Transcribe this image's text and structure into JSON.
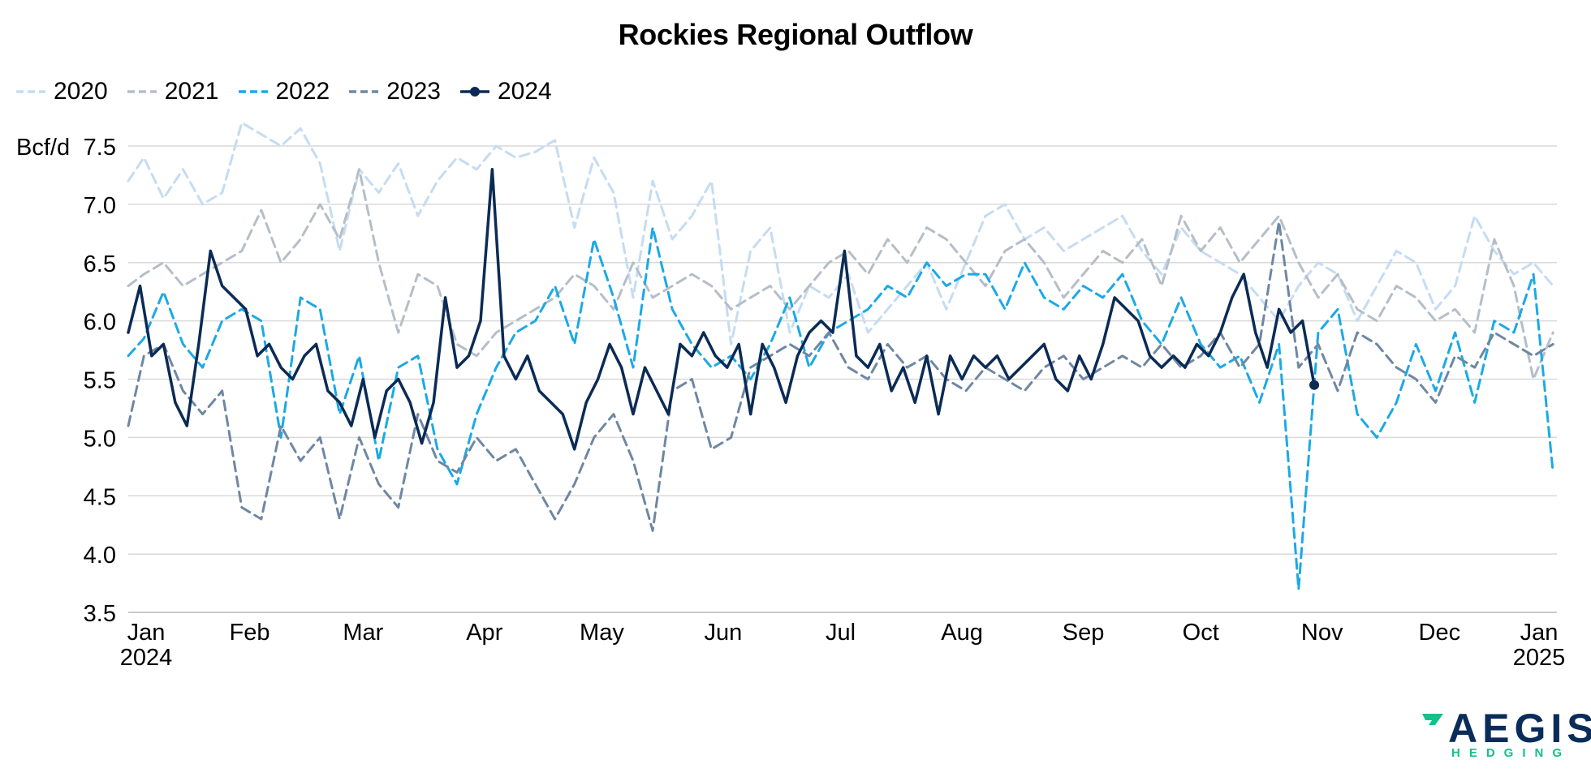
{
  "chart_data": {
    "type": "line",
    "title": "Rockies Regional Outflow",
    "ylabel": "Bcf/d",
    "ylim": [
      3.5,
      7.5
    ],
    "yticks": [
      "3.5",
      "4.0",
      "4.5",
      "5.0",
      "5.5",
      "6.0",
      "6.5",
      "7.0",
      "7.5"
    ],
    "xticks": [
      "Jan",
      "Feb",
      "Mar",
      "Apr",
      "May",
      "Jun",
      "Jul",
      "Aug",
      "Sep",
      "Oct",
      "Nov",
      "Dec",
      "Jan"
    ],
    "xtick_years": [
      "2024",
      "",
      "",
      "",
      "",
      "",
      "",
      "",
      "",
      "",
      "",
      "",
      "2025"
    ],
    "legend_position": "top-left",
    "grid": "horizontal",
    "series": [
      {
        "name": "2020",
        "color": "#c5dcf2",
        "dash": true,
        "x": [
          1,
          5,
          10,
          15,
          20,
          25,
          30,
          35,
          40,
          45,
          50,
          55,
          60,
          65,
          70,
          75,
          80,
          85,
          90,
          95,
          100,
          105,
          110,
          115,
          120,
          125,
          130,
          135,
          140,
          145,
          150,
          155,
          160,
          165,
          170,
          175,
          180,
          185,
          190,
          195,
          200,
          205,
          210,
          215,
          220,
          225,
          230,
          235,
          240,
          245,
          250,
          255,
          260,
          265,
          270,
          275,
          280,
          285,
          290,
          295,
          300,
          305,
          310,
          315,
          320,
          325,
          330,
          335,
          340,
          345,
          350,
          355,
          360,
          365
        ],
        "y": [
          7.2,
          7.4,
          7.05,
          7.3,
          7.0,
          7.1,
          7.7,
          7.6,
          7.5,
          7.65,
          7.35,
          6.6,
          7.3,
          7.1,
          7.35,
          6.9,
          7.2,
          7.4,
          7.3,
          7.5,
          7.4,
          7.45,
          7.55,
          6.8,
          7.4,
          7.1,
          6.2,
          7.2,
          6.7,
          6.9,
          7.2,
          5.8,
          6.6,
          6.8,
          5.9,
          6.3,
          6.2,
          6.4,
          5.9,
          6.1,
          6.3,
          6.5,
          6.1,
          6.5,
          6.9,
          7.0,
          6.7,
          6.8,
          6.6,
          6.7,
          6.8,
          6.9,
          6.6,
          6.4,
          6.8,
          6.6,
          6.5,
          6.4,
          6.2,
          6.0,
          6.3,
          6.5,
          6.4,
          6.0,
          6.3,
          6.6,
          6.5,
          6.1,
          6.3,
          6.9,
          6.6,
          6.4,
          6.5,
          6.3
        ]
      },
      {
        "name": "2021",
        "color": "#b5bec8",
        "dash": true,
        "x": [
          1,
          5,
          10,
          15,
          20,
          25,
          30,
          35,
          40,
          45,
          50,
          55,
          60,
          65,
          70,
          75,
          80,
          85,
          90,
          95,
          100,
          105,
          110,
          115,
          120,
          125,
          130,
          135,
          140,
          145,
          150,
          155,
          160,
          165,
          170,
          175,
          180,
          185,
          190,
          195,
          200,
          205,
          210,
          215,
          220,
          225,
          230,
          235,
          240,
          245,
          250,
          255,
          260,
          265,
          270,
          275,
          280,
          285,
          290,
          295,
          300,
          305,
          310,
          315,
          320,
          325,
          330,
          335,
          340,
          345,
          350,
          355,
          360,
          365
        ],
        "y": [
          6.3,
          6.4,
          6.5,
          6.3,
          6.4,
          6.5,
          6.6,
          6.95,
          6.5,
          6.7,
          7.0,
          6.7,
          7.3,
          6.5,
          5.9,
          6.4,
          6.3,
          5.8,
          5.7,
          5.9,
          6.0,
          6.1,
          6.2,
          6.4,
          6.3,
          6.1,
          6.5,
          6.2,
          6.3,
          6.4,
          6.3,
          6.1,
          6.2,
          6.3,
          6.1,
          6.3,
          6.5,
          6.6,
          6.4,
          6.7,
          6.5,
          6.8,
          6.7,
          6.5,
          6.3,
          6.6,
          6.7,
          6.5,
          6.2,
          6.4,
          6.6,
          6.5,
          6.7,
          6.3,
          6.9,
          6.6,
          6.8,
          6.5,
          6.7,
          6.9,
          6.5,
          6.2,
          6.4,
          6.1,
          6.0,
          6.3,
          6.2,
          6.0,
          6.1,
          5.9,
          6.7,
          6.3,
          5.5,
          5.9
        ]
      },
      {
        "name": "2022",
        "color": "#1ba9e6",
        "dash": true,
        "x": [
          1,
          5,
          10,
          15,
          20,
          25,
          30,
          35,
          40,
          45,
          50,
          55,
          60,
          65,
          70,
          75,
          80,
          85,
          90,
          95,
          100,
          105,
          110,
          115,
          120,
          125,
          130,
          135,
          140,
          145,
          150,
          155,
          160,
          165,
          170,
          175,
          180,
          185,
          190,
          195,
          200,
          205,
          210,
          215,
          220,
          225,
          230,
          235,
          240,
          245,
          250,
          255,
          260,
          265,
          270,
          275,
          280,
          285,
          290,
          295,
          300,
          305,
          310,
          315,
          320,
          325,
          330,
          335,
          340,
          345,
          350,
          355,
          360,
          365
        ],
        "y": [
          5.7,
          5.85,
          6.25,
          5.8,
          5.6,
          6.0,
          6.1,
          6.0,
          5.0,
          6.2,
          6.1,
          5.2,
          5.7,
          4.8,
          5.6,
          5.7,
          4.9,
          4.6,
          5.2,
          5.6,
          5.9,
          6.0,
          6.3,
          5.8,
          6.7,
          6.2,
          5.6,
          6.8,
          6.1,
          5.8,
          5.6,
          5.7,
          5.5,
          5.8,
          6.2,
          5.6,
          5.9,
          6.0,
          6.1,
          6.3,
          6.2,
          6.5,
          6.3,
          6.4,
          6.4,
          6.1,
          6.5,
          6.2,
          6.1,
          6.3,
          6.2,
          6.4,
          6.0,
          5.8,
          6.2,
          5.8,
          5.6,
          5.7,
          5.3,
          5.8,
          3.7,
          5.9,
          6.1,
          5.2,
          5.0,
          5.3,
          5.8,
          5.4,
          5.9,
          5.3,
          6.0,
          5.9,
          6.4,
          4.7
        ]
      },
      {
        "name": "2023",
        "color": "#6f87a3",
        "dash": true,
        "x": [
          1,
          5,
          10,
          15,
          20,
          25,
          30,
          35,
          40,
          45,
          50,
          55,
          60,
          65,
          70,
          75,
          80,
          85,
          90,
          95,
          100,
          105,
          110,
          115,
          120,
          125,
          130,
          135,
          140,
          145,
          150,
          155,
          160,
          165,
          170,
          175,
          180,
          185,
          190,
          195,
          200,
          205,
          210,
          215,
          220,
          225,
          230,
          235,
          240,
          245,
          250,
          255,
          260,
          265,
          270,
          275,
          280,
          285,
          290,
          295,
          300,
          305,
          310,
          315,
          320,
          325,
          330,
          335,
          340,
          345,
          350,
          355,
          360,
          365
        ],
        "y": [
          5.1,
          5.7,
          5.8,
          5.4,
          5.2,
          5.4,
          4.4,
          4.3,
          5.1,
          4.8,
          5.0,
          4.3,
          5.0,
          4.6,
          4.4,
          5.2,
          4.8,
          4.7,
          5.0,
          4.8,
          4.9,
          4.6,
          4.3,
          4.6,
          5.0,
          5.2,
          4.8,
          4.2,
          5.4,
          5.5,
          4.9,
          5.0,
          5.6,
          5.7,
          5.8,
          5.7,
          5.9,
          5.6,
          5.5,
          5.8,
          5.6,
          5.7,
          5.5,
          5.4,
          5.6,
          5.5,
          5.4,
          5.6,
          5.7,
          5.5,
          5.6,
          5.7,
          5.6,
          5.8,
          5.6,
          5.7,
          5.9,
          5.6,
          5.8,
          6.85,
          5.6,
          5.8,
          5.4,
          5.9,
          5.8,
          5.6,
          5.5,
          5.3,
          5.7,
          5.6,
          5.9,
          5.8,
          5.7,
          5.8
        ]
      },
      {
        "name": "2024",
        "color": "#0b2b55",
        "dash": false,
        "end_marker": true,
        "x": [
          1,
          4,
          7,
          10,
          13,
          16,
          19,
          22,
          25,
          28,
          31,
          34,
          37,
          40,
          43,
          46,
          49,
          52,
          55,
          58,
          61,
          64,
          67,
          70,
          73,
          76,
          79,
          82,
          85,
          88,
          91,
          94,
          97,
          100,
          103,
          106,
          109,
          112,
          115,
          118,
          121,
          124,
          127,
          130,
          133,
          136,
          139,
          142,
          145,
          148,
          151,
          154,
          157,
          160,
          163,
          166,
          169,
          172,
          175,
          178,
          181,
          184,
          187,
          190,
          193,
          196,
          199,
          202,
          205,
          208,
          211,
          214,
          217,
          220,
          223,
          226,
          229,
          232,
          235,
          238,
          241,
          244,
          247,
          250,
          253,
          256,
          259,
          262,
          265,
          268,
          271,
          274,
          277,
          280,
          283,
          286,
          289,
          292,
          295,
          298,
          301,
          304
        ],
        "y": [
          5.9,
          6.3,
          5.7,
          5.8,
          5.3,
          5.1,
          5.8,
          6.6,
          6.3,
          6.2,
          6.1,
          5.7,
          5.8,
          5.6,
          5.5,
          5.7,
          5.8,
          5.4,
          5.3,
          5.1,
          5.5,
          5.0,
          5.4,
          5.5,
          5.3,
          4.95,
          5.3,
          6.2,
          5.6,
          5.7,
          6.0,
          7.3,
          5.7,
          5.5,
          5.7,
          5.4,
          5.3,
          5.2,
          4.9,
          5.3,
          5.5,
          5.8,
          5.6,
          5.2,
          5.6,
          5.4,
          5.2,
          5.8,
          5.7,
          5.9,
          5.7,
          5.6,
          5.8,
          5.2,
          5.8,
          5.6,
          5.3,
          5.7,
          5.9,
          6.0,
          5.9,
          6.6,
          5.7,
          5.6,
          5.8,
          5.4,
          5.6,
          5.3,
          5.7,
          5.2,
          5.7,
          5.5,
          5.7,
          5.6,
          5.7,
          5.5,
          5.6,
          5.7,
          5.8,
          5.5,
          5.4,
          5.7,
          5.5,
          5.8,
          6.2,
          6.1,
          6.0,
          5.7,
          5.6,
          5.7,
          5.6,
          5.8,
          5.7,
          5.9,
          6.2,
          6.4,
          5.9,
          5.6,
          6.1,
          5.9,
          6.0,
          5.45
        ]
      }
    ]
  },
  "logo": {
    "word": "AEGIS",
    "sub": "HEDGING"
  }
}
